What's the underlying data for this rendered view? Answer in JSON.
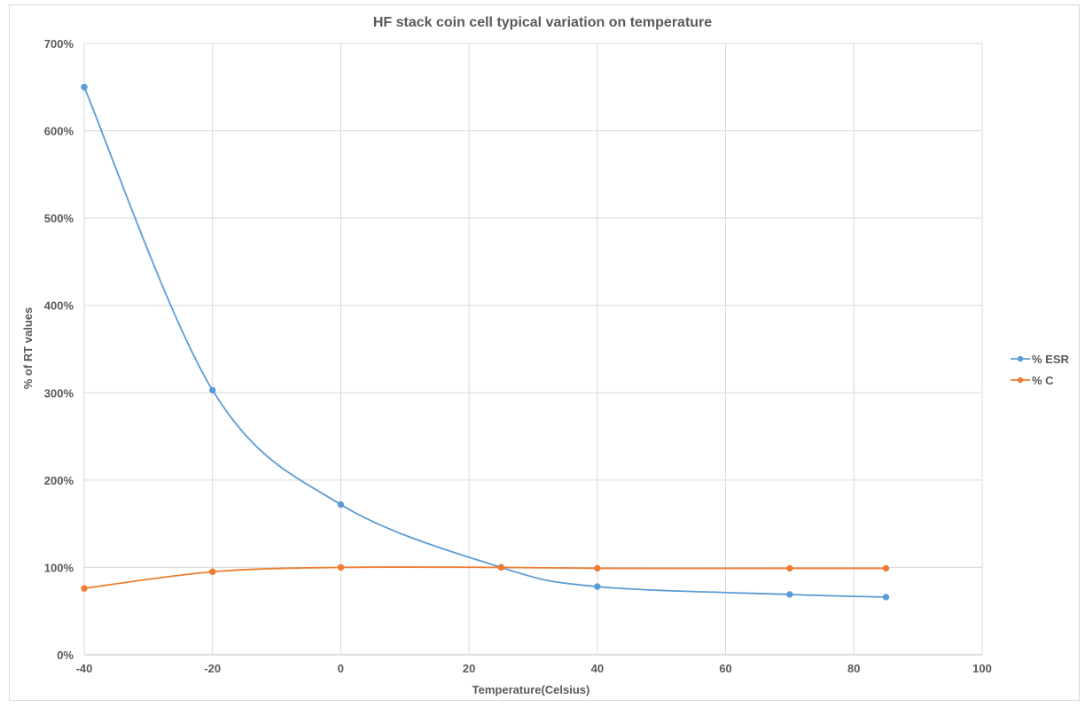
{
  "chart_data": {
    "type": "scatter",
    "title": "HF stack coin cell typical variation on temperature",
    "xlabel": "Temperature(Celsius)",
    "ylabel": "% of RT values",
    "xlim": [
      -40,
      100
    ],
    "ylim": [
      0,
      700
    ],
    "x_ticks": [
      -40,
      -20,
      0,
      20,
      40,
      60,
      80,
      100
    ],
    "x_tick_labels": [
      "-40",
      "-20",
      "0",
      "20",
      "40",
      "60",
      "80",
      "100"
    ],
    "y_ticks": [
      0,
      100,
      200,
      300,
      400,
      500,
      600,
      700
    ],
    "y_tick_labels": [
      "0%",
      "100%",
      "200%",
      "300%",
      "400%",
      "500%",
      "600%",
      "700%"
    ],
    "grid": true,
    "smooth_lines": true,
    "legend_position": "right",
    "series": [
      {
        "name": "% ESR",
        "color": "#5b9bd5",
        "x": [
          -40,
          -20,
          0,
          25,
          40,
          70,
          85
        ],
        "y": [
          650,
          303,
          172,
          100,
          78,
          69,
          66
        ]
      },
      {
        "name": "% C",
        "color": "#ed7d31",
        "x": [
          -40,
          -20,
          0,
          25,
          40,
          70,
          85
        ],
        "y": [
          76,
          95,
          100,
          100,
          99,
          99,
          99
        ]
      }
    ]
  }
}
